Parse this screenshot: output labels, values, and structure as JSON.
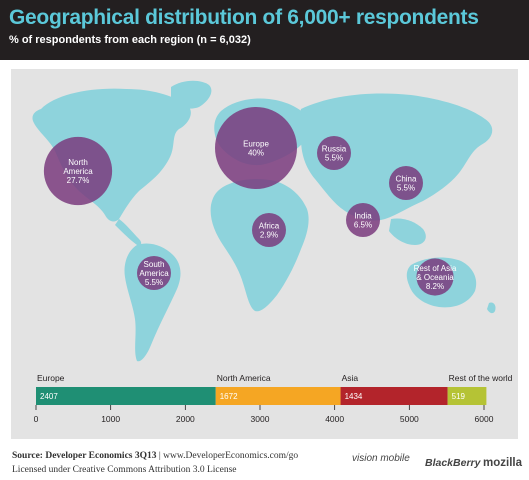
{
  "header": {
    "title": "Geographical distribution of 6,000+ respondents",
    "subtitle": "% of respondents from each region (n = 6,032)"
  },
  "colors": {
    "header_bg": "#231f20",
    "title": "#5bc8d9",
    "map_land": "#8ed3dc",
    "bubble": "#7a3b7e",
    "europe_bar": "#1f8f74",
    "north_america_bar": "#f5a623",
    "asia_bar": "#b3242b",
    "rest_bar": "#b5c335"
  },
  "chart_data": [
    {
      "type": "bubble-map",
      "regions": [
        {
          "name": "North America",
          "value_label": "27.7%",
          "value": 27.7
        },
        {
          "name": "Europe",
          "value_label": "40%",
          "value": 40
        },
        {
          "name": "Russia",
          "value_label": "5.5%",
          "value": 5.5
        },
        {
          "name": "China",
          "value_label": "5.5%",
          "value": 5.5
        },
        {
          "name": "India",
          "value_label": "6.5%",
          "value": 6.5
        },
        {
          "name": "Africa",
          "value_label": "2.9%",
          "value": 2.9
        },
        {
          "name": "South America",
          "value_label": "5.5%",
          "value": 5.5
        },
        {
          "name": "Rest of Asia & Oceania",
          "value_label": "8.2%",
          "value": 8.2
        }
      ]
    },
    {
      "type": "bar",
      "orientation": "horizontal-stacked",
      "segments": [
        {
          "category": "Europe",
          "value": 2407
        },
        {
          "category": "North America",
          "value": 1672
        },
        {
          "category": "Asia",
          "value": 1434
        },
        {
          "category": "Rest of the world",
          "value": 519
        }
      ],
      "xlim": [
        0,
        6000
      ],
      "ticks": [
        0,
        1000,
        2000,
        3000,
        4000,
        5000,
        6000
      ]
    }
  ],
  "footer": {
    "source_label": "Source: Developer Economics 3Q13",
    "source_url": "| www.DeveloperEconomics.com/go",
    "license": "Licensed under Creative Commons Attribution 3.0 License",
    "logos": [
      "vision mobile",
      "BlackBerry",
      "mozilla"
    ]
  }
}
